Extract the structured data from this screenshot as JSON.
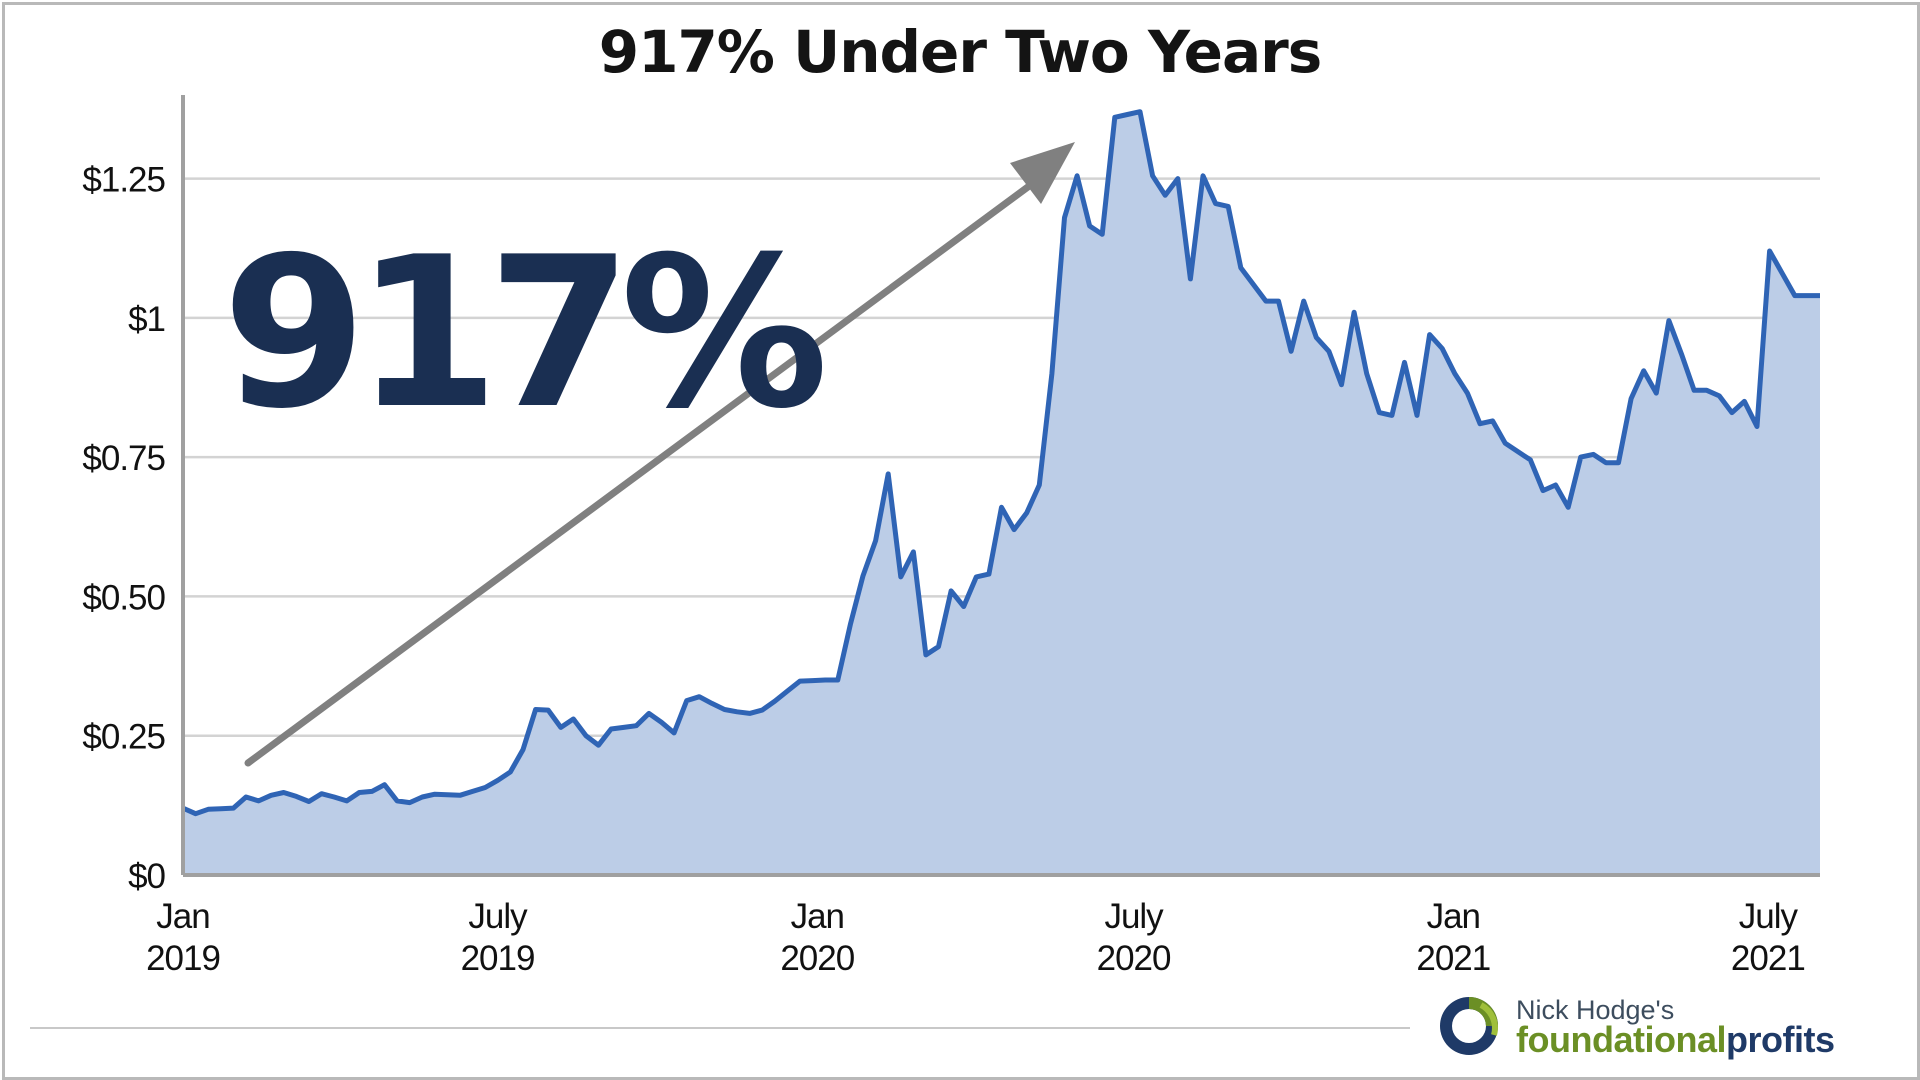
{
  "chart_data": {
    "type": "area",
    "title": "917% Under Two Years",
    "callout": "917%",
    "xlabel": "",
    "ylabel": "",
    "ylim": [
      0,
      1.4
    ],
    "yticks": [
      {
        "value": 0,
        "label": "$0"
      },
      {
        "value": 0.25,
        "label": "$0.25"
      },
      {
        "value": 0.5,
        "label": "$0.50"
      },
      {
        "value": 0.75,
        "label": "$0.75"
      },
      {
        "value": 1.0,
        "label": "$1"
      },
      {
        "value": 1.25,
        "label": "$1.25"
      }
    ],
    "xticks": [
      {
        "date": "2019-01",
        "line1": "Jan",
        "line2": "2019"
      },
      {
        "date": "2019-07",
        "line1": "July",
        "line2": "2019"
      },
      {
        "date": "2020-01",
        "line1": "Jan",
        "line2": "2020"
      },
      {
        "date": "2020-07",
        "line1": "July",
        "line2": "2020"
      },
      {
        "date": "2021-01",
        "line1": "Jan",
        "line2": "2021"
      },
      {
        "date": "2021-07",
        "line1": "July",
        "line2": "2021"
      }
    ],
    "grid": true,
    "colors": {
      "line": "#2f64b5",
      "fill": "#bccde7",
      "grid": "#d3d3d3",
      "arrow": "#808080",
      "callout": "#1a2f52"
    },
    "series": [
      {
        "values": [
          0.12,
          0.11,
          0.118,
          0.119,
          0.12,
          0.14,
          0.133,
          0.143,
          0.148,
          0.141,
          0.132,
          0.146,
          0.14,
          0.133,
          0.148,
          0.15,
          0.162,
          0.133,
          0.13,
          0.14,
          0.145,
          0.144,
          0.143,
          0.15,
          0.157,
          0.17,
          0.185,
          0.225,
          0.297,
          0.296,
          0.265,
          0.28,
          0.25,
          0.233,
          0.262,
          0.265,
          0.268,
          0.29,
          0.274,
          0.255,
          0.313,
          0.32,
          0.308,
          0.297,
          0.293,
          0.29,
          0.296,
          0.312,
          0.33,
          0.348,
          0.349,
          0.35,
          0.35,
          0.45,
          0.537,
          0.6,
          0.72,
          0.535,
          0.58,
          0.395,
          0.41,
          0.51,
          0.482,
          0.535,
          0.54,
          0.66,
          0.62,
          0.65,
          0.7,
          0.9,
          1.18,
          1.255,
          1.165,
          1.15,
          1.36,
          1.365,
          1.37,
          1.255,
          1.22,
          1.25,
          1.07,
          1.255,
          1.205,
          1.2,
          1.09,
          1.06,
          1.03,
          1.03,
          0.94,
          1.03,
          0.965,
          0.94,
          0.88,
          1.01,
          0.9,
          0.83,
          0.825,
          0.92,
          0.825,
          0.97,
          0.945,
          0.9,
          0.865,
          0.81,
          0.815,
          0.775,
          0.76,
          0.745,
          0.69,
          0.7,
          0.66,
          0.75,
          0.755,
          0.74,
          0.74,
          0.855,
          0.905,
          0.865,
          0.995,
          0.935,
          0.87,
          0.87,
          0.86,
          0.83,
          0.85,
          0.805,
          1.12,
          1.08,
          1.04,
          1.04,
          1.04
        ],
        "x_start": "2019-01-01",
        "x_end": "2021-07-31"
      }
    ]
  },
  "brand": {
    "author": "Nick Hodge's",
    "name_part1": "foundational",
    "name_part2": "profits"
  }
}
